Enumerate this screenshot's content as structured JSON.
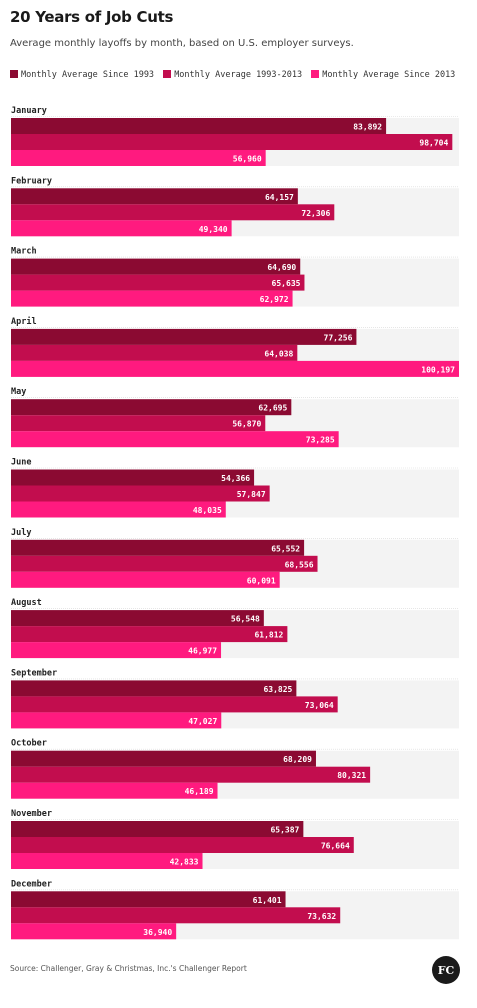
{
  "chart_data": {
    "type": "bar",
    "orientation": "horizontal",
    "title": "20 Years of Job Cuts",
    "subtitle": "Average monthly layoffs by month, based on U.S. employer surveys.",
    "categories": [
      "January",
      "February",
      "March",
      "April",
      "May",
      "June",
      "July",
      "August",
      "September",
      "October",
      "November",
      "December"
    ],
    "series": [
      {
        "name": "Monthly Average Since 1993",
        "color": "#8b0a32",
        "values": [
          83892,
          64157,
          64690,
          77256,
          62695,
          54366,
          65552,
          56548,
          63825,
          68209,
          65387,
          61401
        ],
        "labels": [
          "83,892",
          "64,157",
          "64,690",
          "77,256",
          "62,695",
          "54,366",
          "65,552",
          "56,548",
          "63,825",
          "68,209",
          "65,387",
          "61,401"
        ]
      },
      {
        "name": "Monthly Average 1993-2013",
        "color": "#c20d4e",
        "values": [
          98704,
          72306,
          65635,
          64038,
          56870,
          57847,
          68556,
          61812,
          73064,
          80321,
          76664,
          73632
        ],
        "labels": [
          "98,704",
          "72,306",
          "65,635",
          "64,038",
          "56,870",
          "57,847",
          "68,556",
          "61,812",
          "73,064",
          "80,321",
          "76,664",
          "73,632"
        ]
      },
      {
        "name": "Monthly Average Since 2013",
        "color": "#ff1a7f",
        "values": [
          56960,
          49340,
          62972,
          100197,
          73285,
          48035,
          60091,
          46977,
          47027,
          46189,
          42833,
          36940
        ],
        "labels": [
          "56,960",
          "49,340",
          "62,972",
          "100,197",
          "73,285",
          "48,035",
          "60,091",
          "46,977",
          "47,027",
          "46,189",
          "42,833",
          "36,940"
        ]
      }
    ],
    "xlim": [
      0,
      100197
    ],
    "legend_position": "top",
    "grid": false
  },
  "source": "Source: Challenger, Gray & Christmas, Inc.'s Challenger Report",
  "logo_text": "FC"
}
